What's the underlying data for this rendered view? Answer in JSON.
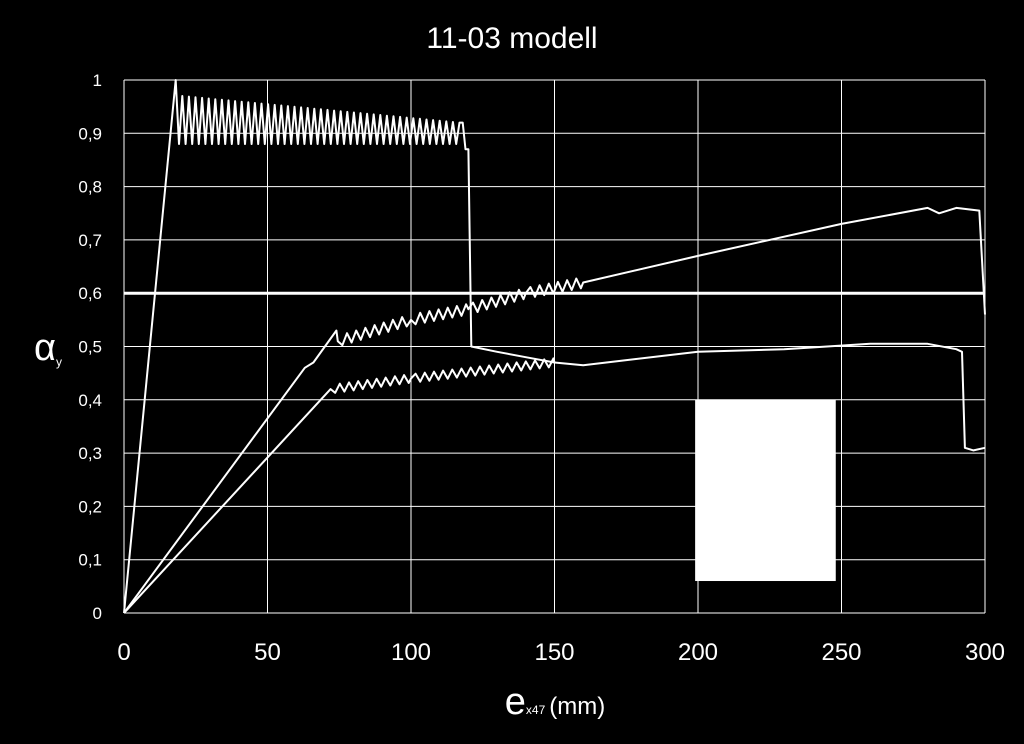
{
  "chart_data": {
    "type": "line",
    "title": "11-03 modell",
    "ylabel": "α",
    "ylabel_sub": "y",
    "xlabel": "e",
    "xlabel_sub": "x47",
    "xlabel_unit": "(mm)",
    "xlim": [
      0,
      300
    ],
    "ylim": [
      0,
      1
    ],
    "x_ticks": [
      0,
      50,
      100,
      150,
      200,
      250,
      300
    ],
    "y_ticks": [
      0,
      0.1,
      0.2,
      0.3,
      0.4,
      0.5,
      0.6,
      0.7,
      0.8,
      0.9,
      1
    ],
    "y_tick_labels": [
      "0",
      "0,1",
      "0,2",
      "0,3",
      "0,4",
      "0,5",
      "0,6",
      "0,7",
      "0,8",
      "0,9",
      "1"
    ],
    "x_tick_labels": [
      "0",
      "50",
      "100",
      "150",
      "200",
      "250",
      "300"
    ],
    "grid": true,
    "legend": "none",
    "colors": {
      "background": "#000000",
      "line": "#ffffff",
      "grid": "#ffffff"
    },
    "reference_line": {
      "y": 0.6
    },
    "series": [
      {
        "oscillation": {
          "x_start": 18,
          "x_end": 118,
          "period": 2.3,
          "peak_start": 0.97,
          "peak_end": 0.92,
          "trough": 0.88
        },
        "points": [
          [
            0,
            0
          ],
          [
            18,
            1.0
          ],
          [
            118,
            0.92
          ],
          [
            119,
            0.87
          ],
          [
            120,
            0.87
          ],
          [
            121,
            0.5
          ],
          [
            130,
            0.49
          ],
          [
            140,
            0.48
          ],
          [
            150,
            0.47
          ]
        ]
      },
      {
        "oscillation": {
          "x_start": 74,
          "x_end": 160,
          "amplitude": 0.01
        },
        "points": [
          [
            0,
            0
          ],
          [
            63,
            0.46
          ],
          [
            66,
            0.47
          ],
          [
            74,
            0.53
          ],
          [
            74.5,
            0.51
          ],
          [
            100,
            0.55
          ],
          [
            120,
            0.57
          ],
          [
            140,
            0.6
          ],
          [
            160,
            0.62
          ],
          [
            200,
            0.67
          ],
          [
            250,
            0.73
          ],
          [
            280,
            0.76
          ],
          [
            284,
            0.75
          ],
          [
            290,
            0.76
          ],
          [
            298,
            0.755
          ],
          [
            300,
            0.56
          ]
        ]
      },
      {
        "oscillation": {
          "x_start": 72,
          "x_end": 150,
          "amplitude": 0.008
        },
        "points": [
          [
            0,
            0
          ],
          [
            72,
            0.42
          ],
          [
            100,
            0.44
          ],
          [
            150,
            0.47
          ],
          [
            160,
            0.465
          ],
          [
            200,
            0.49
          ],
          [
            230,
            0.495
          ],
          [
            260,
            0.505
          ],
          [
            280,
            0.505
          ],
          [
            290,
            0.495
          ],
          [
            292,
            0.49
          ],
          [
            293,
            0.31
          ],
          [
            296,
            0.305
          ],
          [
            300,
            0.31
          ]
        ]
      }
    ],
    "overlay_box": {
      "x": [
        199,
        248
      ],
      "y": [
        0.06,
        0.4
      ],
      "color": "#ffffff"
    }
  }
}
